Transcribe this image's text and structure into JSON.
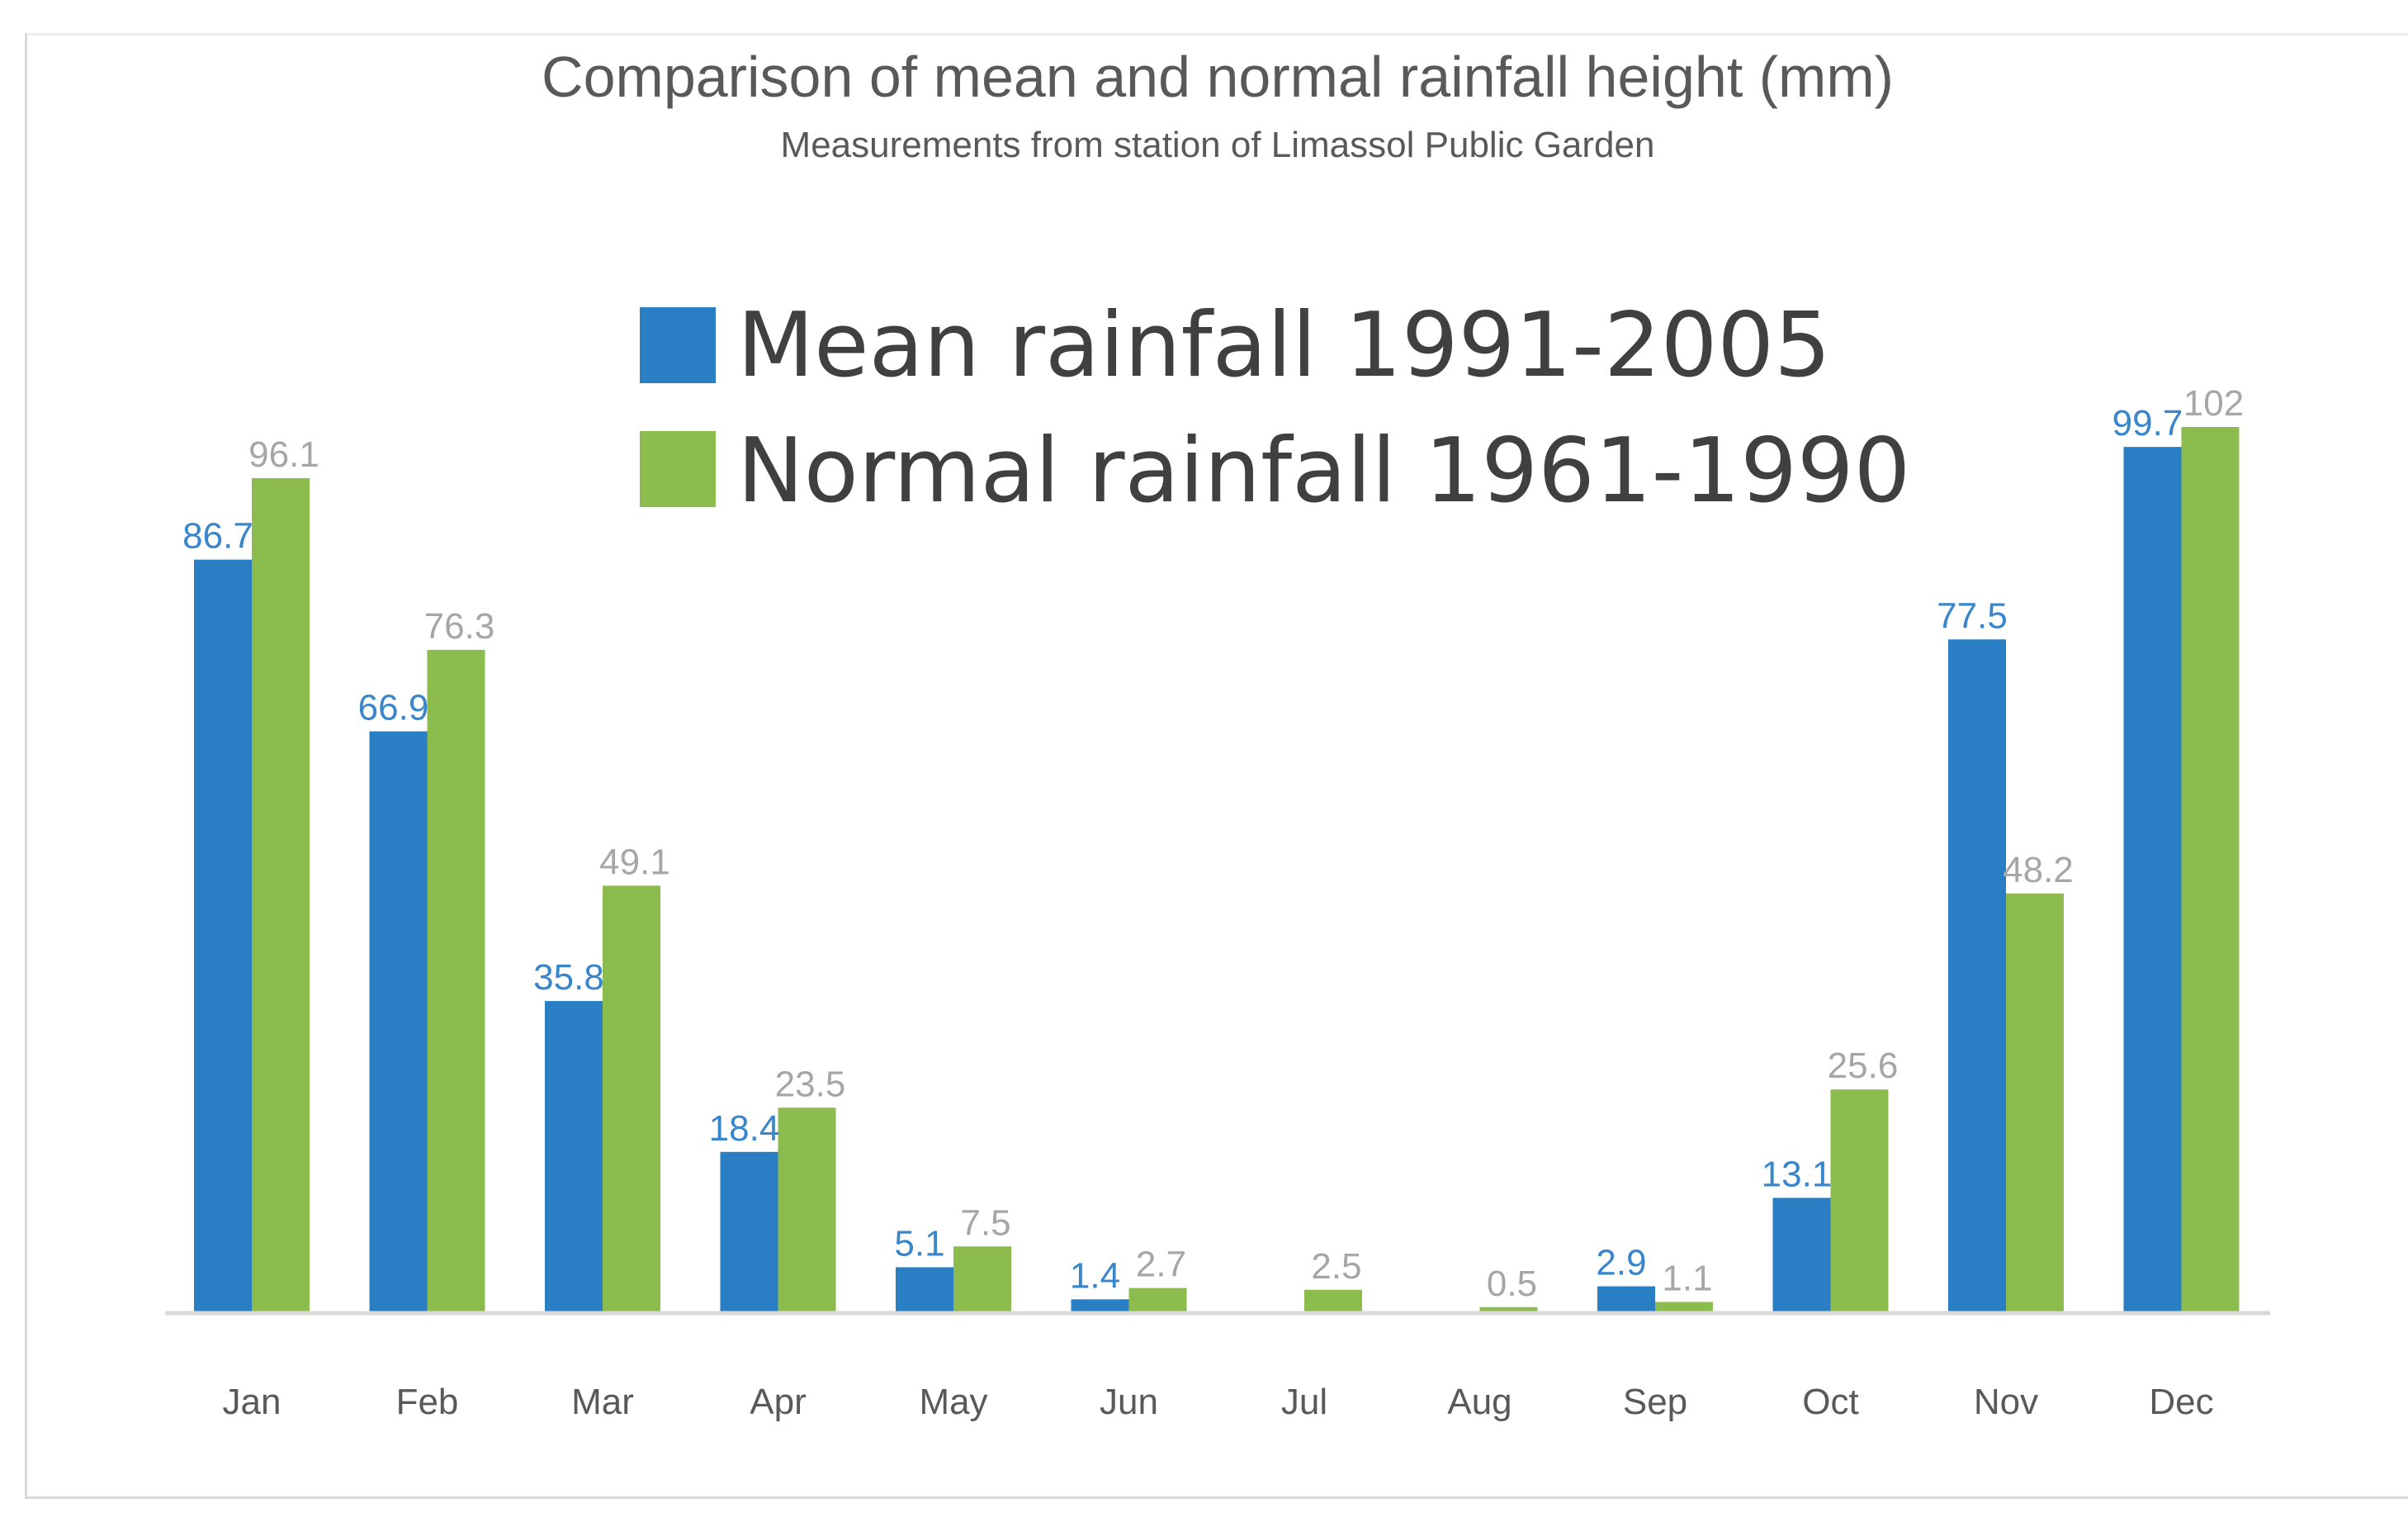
{
  "chart_data": {
    "type": "bar",
    "title": "Comparison of mean and normal rainfall height (mm)",
    "subtitle": "Measurements from station of Limassol Public Garden",
    "xlabel": "",
    "ylabel": "",
    "ylim": [
      0,
      105
    ],
    "grid": false,
    "legend_position": "top-center",
    "categories": [
      "Jan",
      "Feb",
      "Mar",
      "Apr",
      "May",
      "Jun",
      "Jul",
      "Aug",
      "Sep",
      "Oct",
      "Nov",
      "Dec"
    ],
    "series": [
      {
        "name": "Mean rainfall 1991-2005",
        "color": "#2a7fc4",
        "label_color": "#3a86cc",
        "values": [
          86.7,
          66.9,
          35.8,
          18.4,
          5.1,
          1.4,
          null,
          null,
          2.9,
          13.1,
          77.5,
          99.7
        ],
        "labels": [
          "86.7",
          "66.9",
          "35.8",
          "18.4",
          "5.1",
          "1.4",
          null,
          null,
          "2.9",
          "13.1",
          "77.5",
          "99.7"
        ]
      },
      {
        "name": "Normal rainfall 1961-1990",
        "color": "#8cbb4e",
        "label_color": "#a6a6a6",
        "values": [
          96.1,
          76.3,
          49.1,
          23.5,
          7.5,
          2.7,
          2.5,
          0.5,
          1.1,
          25.6,
          48.2,
          102
        ],
        "labels": [
          "96.1",
          "76.3",
          "49.1",
          "23.5",
          "7.5",
          "2.7",
          "2.5",
          "0.5",
          "1.1",
          "25.6",
          "48.2",
          "102"
        ]
      }
    ]
  },
  "colors": {
    "axis": "#d9d9d9",
    "text": "#595959",
    "legend_text": "#404040"
  }
}
